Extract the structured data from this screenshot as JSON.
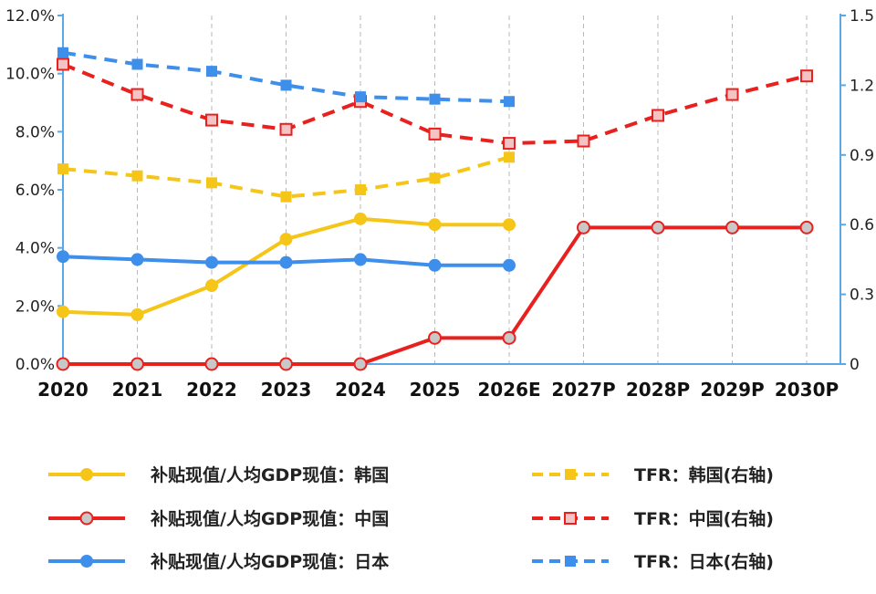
{
  "chart_data": {
    "type": "line",
    "categories": [
      "2020",
      "2021",
      "2022",
      "2023",
      "2024",
      "2025",
      "2026E",
      "2027P",
      "2028P",
      "2029P",
      "2030P"
    ],
    "y_left": {
      "range": [
        0,
        12
      ],
      "ticks": [
        0,
        2,
        4,
        6,
        8,
        10,
        12
      ],
      "tick_labels": [
        "0.0%",
        "2.0%",
        "4.0%",
        "6.0%",
        "8.0%",
        "10.0%",
        "12.0%"
      ]
    },
    "y_right": {
      "range": [
        0,
        1.5
      ],
      "ticks": [
        0,
        0.3,
        0.6,
        0.9,
        1.2,
        1.5
      ],
      "tick_labels": [
        "0",
        "0.3",
        "0.6",
        "0.9",
        "1.2",
        "1.5"
      ]
    },
    "grid": {
      "vertical": true,
      "horizontal": false
    },
    "legend_position": "bottom",
    "series": [
      {
        "name": "补贴现值/人均GDP现值：韩国",
        "axis": "left",
        "style": "solid",
        "marker": "circle-filled",
        "color": "#F5C518",
        "values": [
          1.8,
          1.7,
          2.7,
          4.3,
          5.0,
          4.8,
          4.8,
          null,
          null,
          null,
          null
        ]
      },
      {
        "name": "补贴现值/人均GDP现值：中国",
        "axis": "left",
        "style": "solid",
        "marker": "circle-gray",
        "color": "#E8211F",
        "values": [
          0.0,
          0.0,
          0.0,
          0.0,
          0.0,
          0.9,
          0.9,
          4.7,
          4.7,
          4.7,
          4.7
        ]
      },
      {
        "name": "补贴现值/人均GDP现值：日本",
        "axis": "left",
        "style": "solid",
        "marker": "circle-filled",
        "color": "#3E8EEB",
        "values": [
          3.7,
          3.6,
          3.5,
          3.5,
          3.6,
          3.4,
          3.4,
          null,
          null,
          null,
          null
        ]
      },
      {
        "name": "TFR：韩国(右轴)",
        "axis": "right",
        "style": "dashed",
        "marker": "square-filled",
        "color": "#F5C518",
        "values": [
          0.84,
          0.81,
          0.78,
          0.72,
          0.75,
          0.8,
          0.89,
          null,
          null,
          null,
          null
        ]
      },
      {
        "name": "TFR：中国(右轴)",
        "axis": "right",
        "style": "dashed",
        "marker": "square-pink",
        "color": "#E8211F",
        "values": [
          1.29,
          1.16,
          1.05,
          1.01,
          1.13,
          0.99,
          0.95,
          0.96,
          1.07,
          1.16,
          1.24
        ]
      },
      {
        "name": "TFR：日本(右轴)",
        "axis": "right",
        "style": "dashed",
        "marker": "square-filled",
        "color": "#3E8EEB",
        "values": [
          1.34,
          1.29,
          1.26,
          1.2,
          1.15,
          1.14,
          1.13,
          null,
          null,
          null,
          null
        ]
      }
    ]
  }
}
